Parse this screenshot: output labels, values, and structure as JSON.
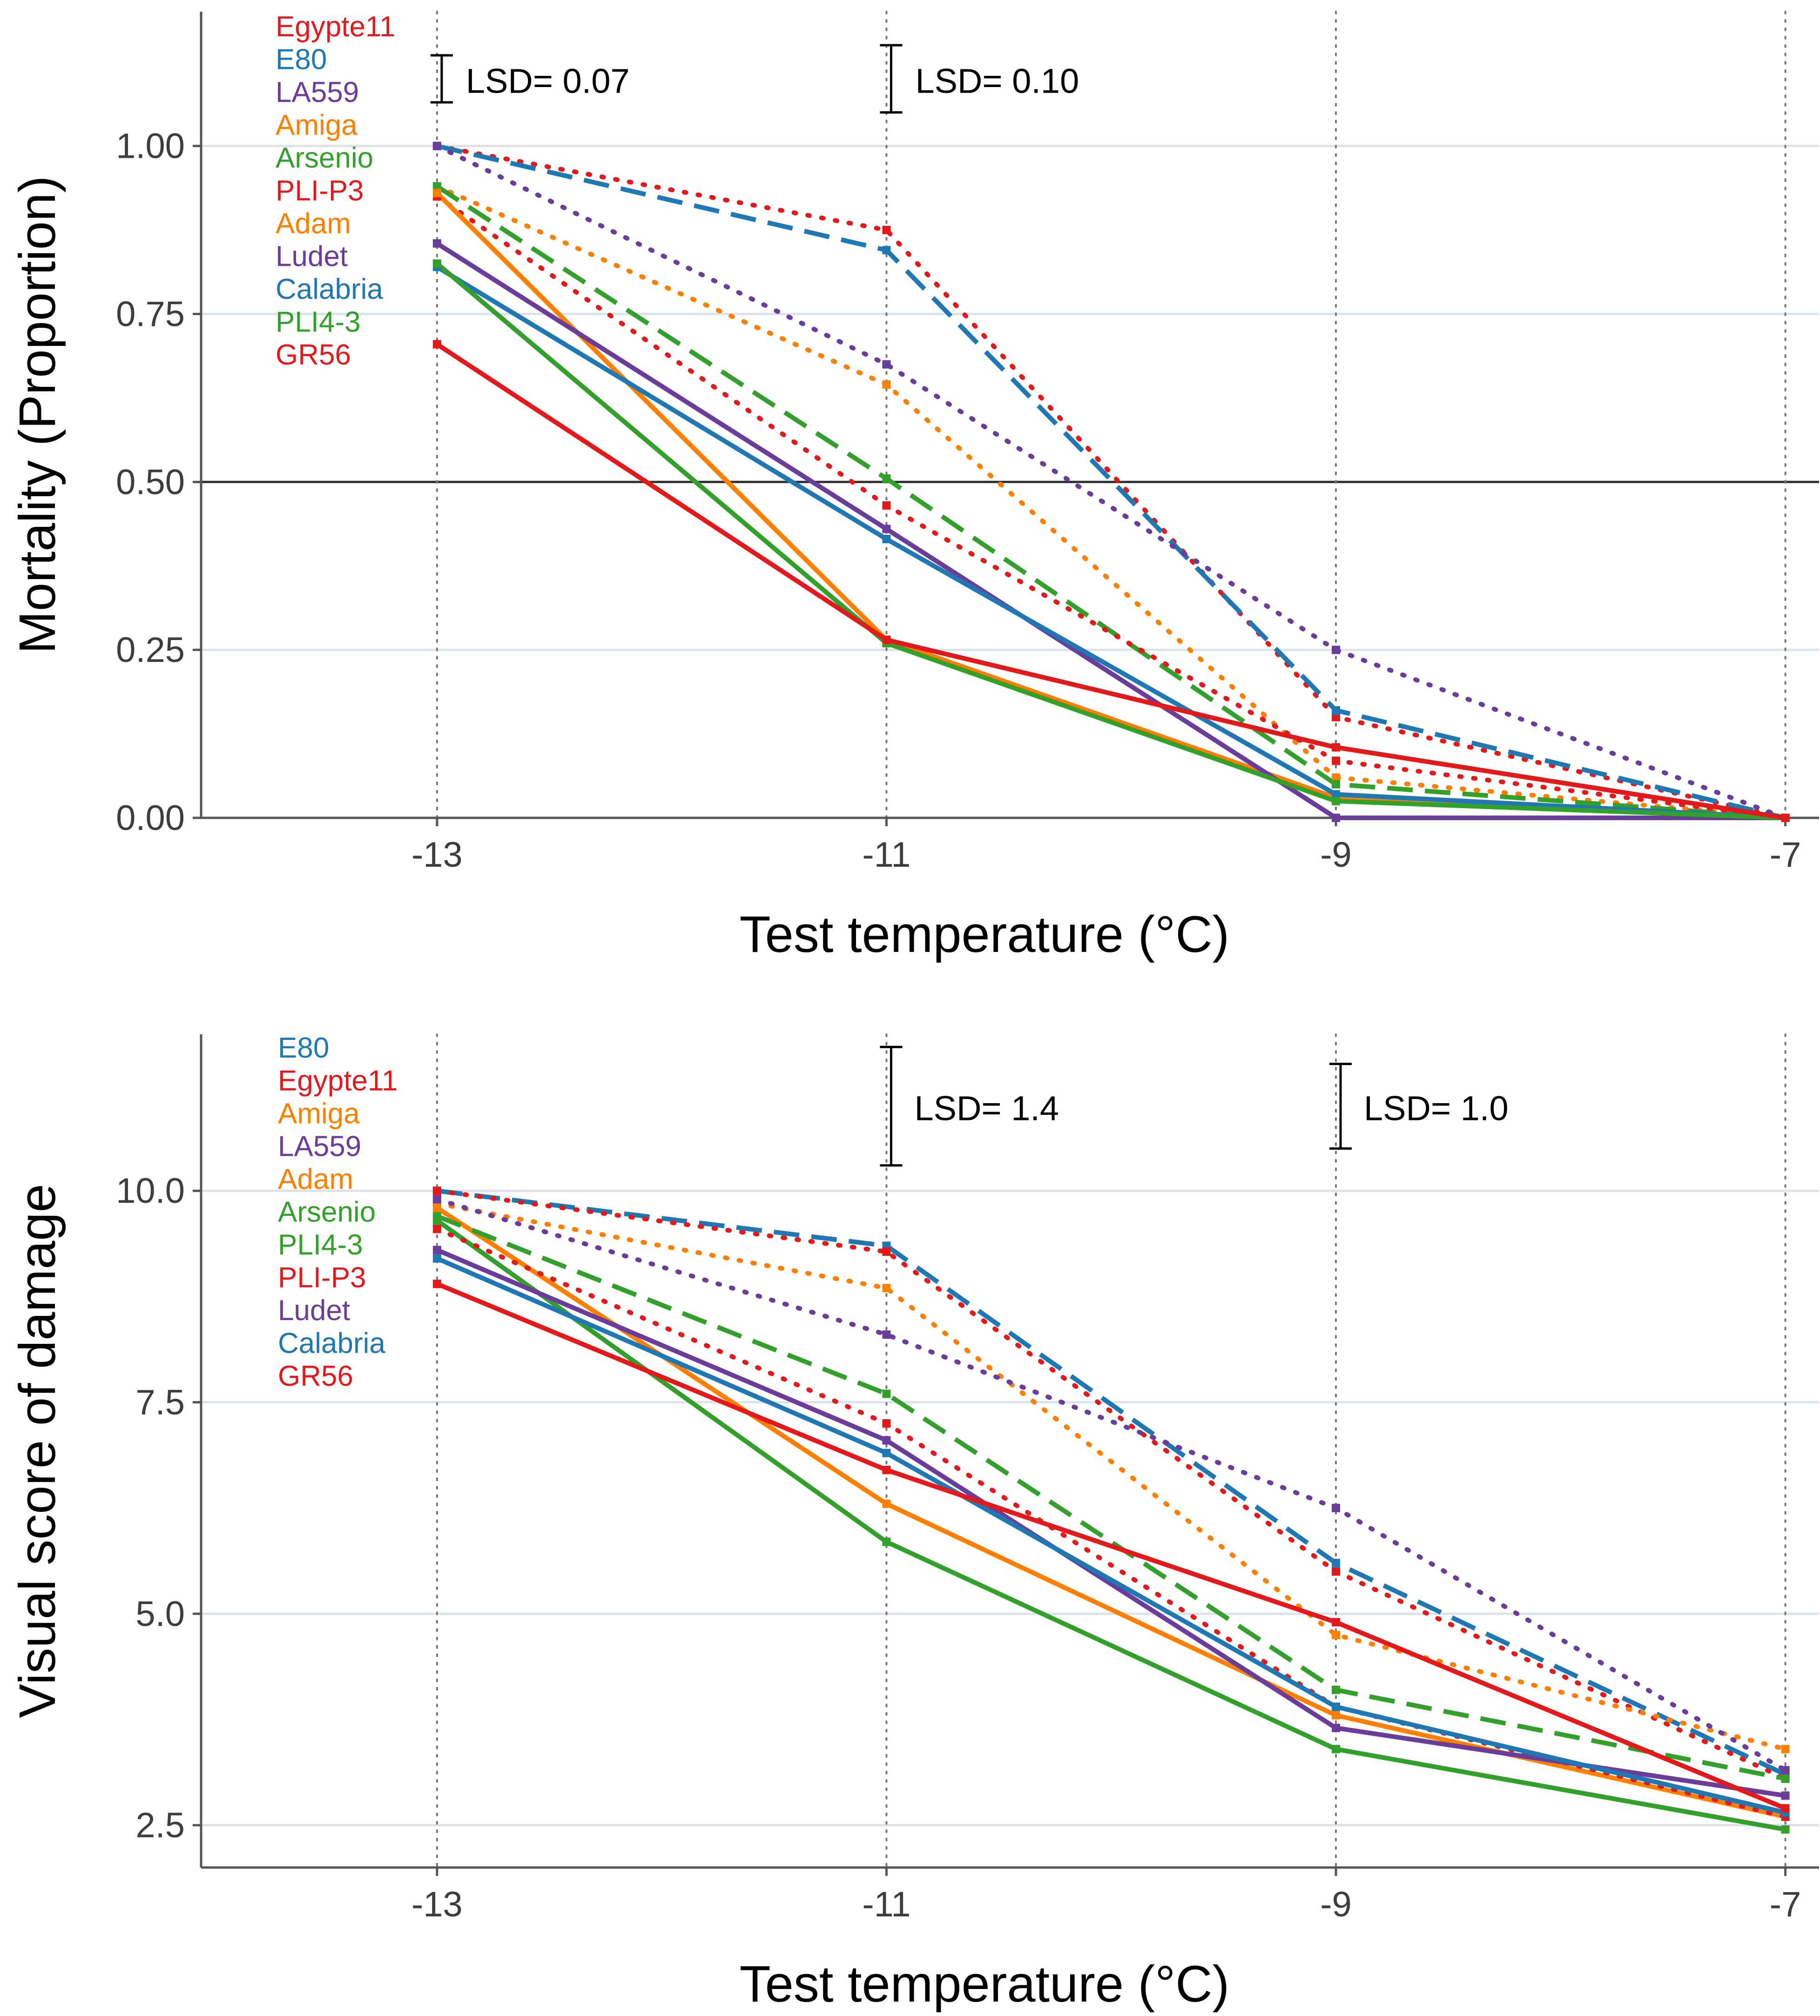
{
  "colors": {
    "red": "#e31a1c",
    "blue": "#1f78b4",
    "purple": "#6a3d9a",
    "orange": "#ff7f00",
    "green": "#33a02c",
    "grid": "#dbe2ea",
    "axis": "#555555",
    "vline": "#777777"
  },
  "chart_data": [
    {
      "type": "line",
      "ylabel": "Mortality (Proportion)",
      "xlabel": "Test temperature (°C)",
      "x": [
        -13,
        -11,
        -9,
        -7
      ],
      "x_tick_labels": [
        "-13",
        "-11",
        "-9",
        "-7"
      ],
      "xlim": [
        -14.05,
        -6.85
      ],
      "ylim": [
        0,
        1.2
      ],
      "y_ticks": [
        0.0,
        0.25,
        0.5,
        0.75,
        1.0
      ],
      "y_tick_labels": [
        "0.00",
        "0.25",
        "0.50",
        "0.75",
        "1.00"
      ],
      "reference_line": 0.5,
      "lsd": [
        {
          "label": "LSD= 0.07",
          "x": -13,
          "low": 1.065,
          "high": 1.135
        },
        {
          "label": "LSD= 0.10",
          "x": -11,
          "low": 1.05,
          "high": 1.15
        }
      ],
      "series": [
        {
          "name": "Egypte11",
          "color": "red",
          "dash": "dotted",
          "values": [
            1.0,
            0.875,
            0.15,
            0.0
          ]
        },
        {
          "name": "E80",
          "color": "blue",
          "dash": "dashed",
          "values": [
            1.0,
            0.845,
            0.16,
            0.0
          ]
        },
        {
          "name": "LA559",
          "color": "purple",
          "dash": "dotted",
          "values": [
            1.0,
            0.675,
            0.25,
            0.0
          ]
        },
        {
          "name": "Amiga",
          "color": "orange",
          "dash": "dotted",
          "values": [
            0.94,
            0.645,
            0.06,
            0.0
          ]
        },
        {
          "name": "Arsenio",
          "color": "green",
          "dash": "dashed",
          "values": [
            0.94,
            0.505,
            0.05,
            0.0
          ]
        },
        {
          "name": "PLI-P3",
          "color": "red",
          "dash": "dotted",
          "values": [
            0.925,
            0.465,
            0.085,
            0.0
          ]
        },
        {
          "name": "Adam",
          "color": "orange",
          "dash": "solid",
          "values": [
            0.93,
            0.265,
            0.03,
            0.0
          ]
        },
        {
          "name": "Ludet",
          "color": "purple",
          "dash": "solid",
          "values": [
            0.855,
            0.43,
            0.0,
            0.0
          ]
        },
        {
          "name": "Calabria",
          "color": "blue",
          "dash": "solid",
          "values": [
            0.82,
            0.415,
            0.035,
            0.0
          ]
        },
        {
          "name": "PLI4-3",
          "color": "green",
          "dash": "solid",
          "values": [
            0.825,
            0.26,
            0.025,
            0.0
          ]
        },
        {
          "name": "GR56",
          "color": "red",
          "dash": "solid",
          "values": [
            0.705,
            0.265,
            0.105,
            0.0
          ]
        }
      ]
    },
    {
      "type": "line",
      "ylabel": "Visual score of damage",
      "xlabel": "Test temperature (°C)",
      "x": [
        -13,
        -11,
        -9,
        -7
      ],
      "x_tick_labels": [
        "-13",
        "-11",
        "-9",
        "-7"
      ],
      "xlim": [
        -14.05,
        -6.85
      ],
      "ylim": [
        2.0,
        11.85
      ],
      "y_ticks": [
        2.5,
        5.0,
        7.5,
        10.0
      ],
      "y_tick_labels": [
        "2.5",
        "5.0",
        "7.5",
        "10.0"
      ],
      "lsd": [
        {
          "label": "LSD= 1.4",
          "x": -11,
          "low": 10.3,
          "high": 11.7
        },
        {
          "label": "LSD= 1.0",
          "x": -9,
          "low": 10.5,
          "high": 11.5
        }
      ],
      "series": [
        {
          "name": "E80",
          "color": "blue",
          "dash": "dashed",
          "values": [
            10.0,
            9.35,
            5.6,
            3.1
          ]
        },
        {
          "name": "Egypte11",
          "color": "red",
          "dash": "dotted",
          "values": [
            10.0,
            9.28,
            5.5,
            3.05
          ]
        },
        {
          "name": "Amiga",
          "color": "orange",
          "dash": "dotted",
          "values": [
            9.85,
            8.85,
            4.75,
            3.4
          ]
        },
        {
          "name": "LA559",
          "color": "purple",
          "dash": "dotted",
          "values": [
            9.9,
            8.3,
            6.25,
            3.15
          ]
        },
        {
          "name": "Adam",
          "color": "orange",
          "dash": "solid",
          "values": [
            9.8,
            6.3,
            3.8,
            2.6
          ]
        },
        {
          "name": "Arsenio",
          "color": "green",
          "dash": "dashed",
          "values": [
            9.7,
            7.6,
            4.1,
            3.05
          ]
        },
        {
          "name": "PLI4-3",
          "color": "green",
          "dash": "solid",
          "values": [
            9.65,
            5.85,
            3.4,
            2.45
          ]
        },
        {
          "name": "PLI-P3",
          "color": "red",
          "dash": "dotted",
          "values": [
            9.55,
            7.25,
            3.9,
            2.6
          ]
        },
        {
          "name": "Ludet",
          "color": "purple",
          "dash": "solid",
          "values": [
            9.3,
            7.05,
            3.65,
            2.85
          ]
        },
        {
          "name": "Calabria",
          "color": "blue",
          "dash": "solid",
          "values": [
            9.2,
            6.9,
            3.9,
            2.65
          ]
        },
        {
          "name": "GR56",
          "color": "red",
          "dash": "solid",
          "values": [
            8.9,
            6.7,
            4.9,
            2.7
          ]
        }
      ]
    }
  ]
}
